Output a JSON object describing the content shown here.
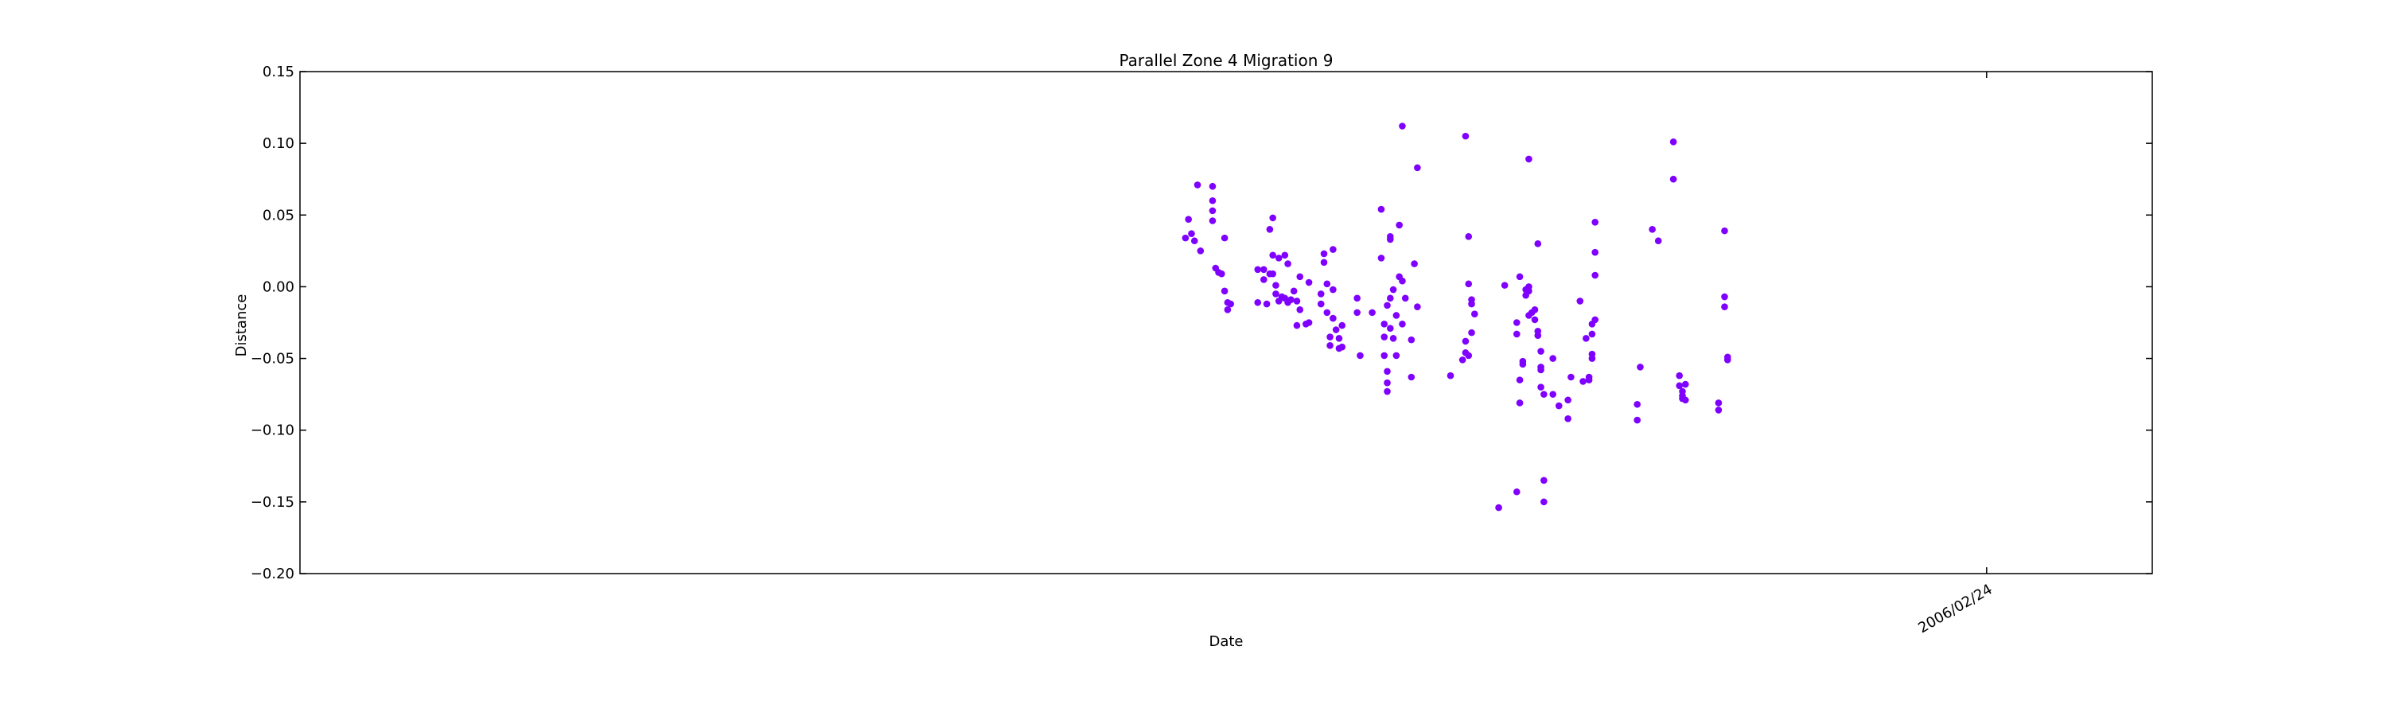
{
  "chart_data": {
    "type": "scatter",
    "title": "Parallel Zone 4 Migration 9",
    "xlabel": "Date",
    "ylabel": "Distance",
    "ylim": [
      -0.2,
      0.15
    ],
    "yticks": [
      -0.2,
      -0.15,
      -0.1,
      -0.05,
      0.0,
      0.05,
      0.1,
      0.15
    ],
    "ytick_labels": [
      "−0.20",
      "−0.15",
      "−0.10",
      "−0.05",
      "0.00",
      "0.05",
      "0.10",
      "0.15"
    ],
    "xlim": [
      "2004-08-13",
      "2006-04-20"
    ],
    "xticks": [
      "2006-02-24"
    ],
    "xtick_labels": [
      "2006/02/24"
    ],
    "grid": false,
    "color": "#7f00ff",
    "series": [
      {
        "points": [
          [
            "2005-06-03",
            0.034
          ],
          [
            "2005-06-04",
            0.047
          ],
          [
            "2005-06-05",
            0.037
          ],
          [
            "2005-06-06",
            0.032
          ],
          [
            "2005-06-07",
            0.071
          ],
          [
            "2005-06-08",
            0.025
          ],
          [
            "2005-06-12",
            0.07
          ],
          [
            "2005-06-12",
            0.06
          ],
          [
            "2005-06-12",
            0.053
          ],
          [
            "2005-06-12",
            0.046
          ],
          [
            "2005-06-13",
            0.013
          ],
          [
            "2005-06-14",
            0.01
          ],
          [
            "2005-06-15",
            0.009
          ],
          [
            "2005-06-16",
            0.034
          ],
          [
            "2005-06-16",
            -0.003
          ],
          [
            "2005-06-17",
            -0.011
          ],
          [
            "2005-06-17",
            -0.016
          ],
          [
            "2005-06-18",
            -0.012
          ],
          [
            "2005-06-27",
            0.012
          ],
          [
            "2005-06-27",
            -0.011
          ],
          [
            "2005-06-29",
            0.012
          ],
          [
            "2005-06-29",
            0.005
          ],
          [
            "2005-06-30",
            -0.012
          ],
          [
            "2005-07-01",
            0.009
          ],
          [
            "2005-07-01",
            0.04
          ],
          [
            "2005-07-02",
            0.022
          ],
          [
            "2005-07-02",
            0.048
          ],
          [
            "2005-07-02",
            0.009
          ],
          [
            "2005-07-03",
            -0.005
          ],
          [
            "2005-07-03",
            0.001
          ],
          [
            "2005-07-04",
            0.02
          ],
          [
            "2005-07-04",
            -0.01
          ],
          [
            "2005-07-05",
            -0.007
          ],
          [
            "2005-07-06",
            0.022
          ],
          [
            "2005-07-06",
            -0.008
          ],
          [
            "2005-07-07",
            0.016
          ],
          [
            "2005-07-07",
            -0.011
          ],
          [
            "2005-07-08",
            -0.009
          ],
          [
            "2005-07-09",
            -0.003
          ],
          [
            "2005-07-10",
            -0.01
          ],
          [
            "2005-07-10",
            -0.027
          ],
          [
            "2005-07-11",
            0.007
          ],
          [
            "2005-07-11",
            -0.016
          ],
          [
            "2005-07-13",
            -0.026
          ],
          [
            "2005-07-14",
            0.003
          ],
          [
            "2005-07-14",
            -0.025
          ],
          [
            "2005-07-18",
            -0.005
          ],
          [
            "2005-07-18",
            -0.012
          ],
          [
            "2005-07-19",
            0.017
          ],
          [
            "2005-07-19",
            0.023
          ],
          [
            "2005-07-20",
            0.002
          ],
          [
            "2005-07-20",
            -0.018
          ],
          [
            "2005-07-21",
            -0.035
          ],
          [
            "2005-07-21",
            -0.041
          ],
          [
            "2005-07-22",
            -0.022
          ],
          [
            "2005-07-22",
            0.026
          ],
          [
            "2005-07-22",
            -0.002
          ],
          [
            "2005-07-23",
            -0.03
          ],
          [
            "2005-07-24",
            -0.036
          ],
          [
            "2005-07-24",
            -0.043
          ],
          [
            "2005-07-25",
            -0.042
          ],
          [
            "2005-07-25",
            -0.027
          ],
          [
            "2005-07-30",
            -0.018
          ],
          [
            "2005-07-30",
            -0.008
          ],
          [
            "2005-07-31",
            -0.048
          ],
          [
            "2005-08-04",
            -0.018
          ],
          [
            "2005-08-07",
            0.02
          ],
          [
            "2005-08-07",
            0.054
          ],
          [
            "2005-08-08",
            -0.026
          ],
          [
            "2005-08-08",
            -0.048
          ],
          [
            "2005-08-08",
            -0.035
          ],
          [
            "2005-08-09",
            -0.059
          ],
          [
            "2005-08-09",
            -0.067
          ],
          [
            "2005-08-09",
            -0.073
          ],
          [
            "2005-08-09",
            -0.013
          ],
          [
            "2005-08-10",
            -0.008
          ],
          [
            "2005-08-10",
            -0.029
          ],
          [
            "2005-08-10",
            0.035
          ],
          [
            "2005-08-10",
            0.033
          ],
          [
            "2005-08-11",
            -0.002
          ],
          [
            "2005-08-11",
            -0.036
          ],
          [
            "2005-08-12",
            -0.02
          ],
          [
            "2005-08-12",
            -0.048
          ],
          [
            "2005-08-13",
            0.007
          ],
          [
            "2005-08-13",
            0.043
          ],
          [
            "2005-08-14",
            0.112
          ],
          [
            "2005-08-14",
            0.004
          ],
          [
            "2005-08-14",
            -0.026
          ],
          [
            "2005-08-15",
            -0.008
          ],
          [
            "2005-08-17",
            -0.063
          ],
          [
            "2005-08-17",
            -0.037
          ],
          [
            "2005-08-18",
            0.016
          ],
          [
            "2005-08-19",
            0.083
          ],
          [
            "2005-08-19",
            -0.014
          ],
          [
            "2005-08-30",
            -0.062
          ],
          [
            "2005-09-03",
            -0.051
          ],
          [
            "2005-09-04",
            0.105
          ],
          [
            "2005-09-04",
            -0.038
          ],
          [
            "2005-09-04",
            -0.046
          ],
          [
            "2005-09-05",
            0.035
          ],
          [
            "2005-09-05",
            0.002
          ],
          [
            "2005-09-05",
            -0.048
          ],
          [
            "2005-09-06",
            -0.009
          ],
          [
            "2005-09-06",
            -0.032
          ],
          [
            "2005-09-06",
            -0.012
          ],
          [
            "2005-09-07",
            -0.019
          ],
          [
            "2005-09-15",
            -0.154
          ],
          [
            "2005-09-17",
            0.001
          ],
          [
            "2005-09-21",
            -0.143
          ],
          [
            "2005-09-21",
            -0.025
          ],
          [
            "2005-09-21",
            -0.033
          ],
          [
            "2005-09-22",
            0.007
          ],
          [
            "2005-09-22",
            -0.065
          ],
          [
            "2005-09-22",
            -0.081
          ],
          [
            "2005-09-23",
            -0.052
          ],
          [
            "2005-09-23",
            -0.054
          ],
          [
            "2005-09-24",
            -0.006
          ],
          [
            "2005-09-24",
            -0.002
          ],
          [
            "2005-09-25",
            0.0
          ],
          [
            "2005-09-25",
            -0.02
          ],
          [
            "2005-09-25",
            -0.003
          ],
          [
            "2005-09-25",
            0.089
          ],
          [
            "2005-09-26",
            -0.018
          ],
          [
            "2005-09-27",
            -0.023
          ],
          [
            "2005-09-27",
            -0.016
          ],
          [
            "2005-09-28",
            -0.031
          ],
          [
            "2005-09-28",
            -0.034
          ],
          [
            "2005-09-28",
            0.03
          ],
          [
            "2005-09-29",
            -0.07
          ],
          [
            "2005-09-29",
            -0.045
          ],
          [
            "2005-09-29",
            -0.056
          ],
          [
            "2005-09-29",
            -0.058
          ],
          [
            "2005-09-30",
            -0.15
          ],
          [
            "2005-09-30",
            -0.135
          ],
          [
            "2005-09-30",
            -0.075
          ],
          [
            "2005-10-03",
            -0.075
          ],
          [
            "2005-10-03",
            -0.05
          ],
          [
            "2005-10-05",
            -0.083
          ],
          [
            "2005-10-08",
            -0.079
          ],
          [
            "2005-10-08",
            -0.092
          ],
          [
            "2005-10-09",
            -0.063
          ],
          [
            "2005-10-12",
            -0.01
          ],
          [
            "2005-10-13",
            -0.066
          ],
          [
            "2005-10-14",
            -0.036
          ],
          [
            "2005-10-15",
            -0.063
          ],
          [
            "2005-10-15",
            -0.065
          ],
          [
            "2005-10-16",
            -0.047
          ],
          [
            "2005-10-16",
            -0.05
          ],
          [
            "2005-10-16",
            -0.033
          ],
          [
            "2005-10-16",
            -0.026
          ],
          [
            "2005-10-17",
            -0.023
          ],
          [
            "2005-10-17",
            0.024
          ],
          [
            "2005-10-17",
            0.008
          ],
          [
            "2005-10-17",
            0.045
          ],
          [
            "2005-10-31",
            -0.082
          ],
          [
            "2005-10-31",
            -0.093
          ],
          [
            "2005-11-01",
            -0.056
          ],
          [
            "2005-11-05",
            0.04
          ],
          [
            "2005-11-07",
            0.032
          ],
          [
            "2005-11-12",
            0.075
          ],
          [
            "2005-11-12",
            0.101
          ],
          [
            "2005-11-14",
            -0.062
          ],
          [
            "2005-11-14",
            -0.069
          ],
          [
            "2005-11-15",
            -0.078
          ],
          [
            "2005-11-15",
            -0.076
          ],
          [
            "2005-11-15",
            -0.073
          ],
          [
            "2005-11-16",
            -0.068
          ],
          [
            "2005-11-16",
            -0.079
          ],
          [
            "2005-11-27",
            -0.081
          ],
          [
            "2005-11-27",
            -0.086
          ],
          [
            "2005-11-29",
            0.039
          ],
          [
            "2005-11-29",
            -0.007
          ],
          [
            "2005-11-29",
            -0.014
          ],
          [
            "2005-11-30",
            -0.051
          ],
          [
            "2005-11-30",
            -0.049
          ]
        ]
      }
    ]
  }
}
